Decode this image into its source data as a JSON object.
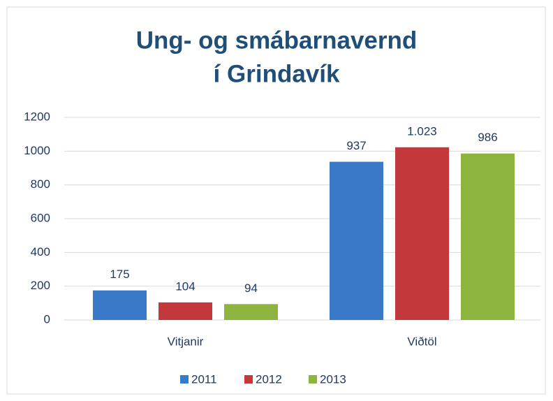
{
  "chart_data": {
    "type": "bar",
    "title": [
      "Ung- og smábarnavernd",
      "í Grindavík"
    ],
    "categories": [
      "Vitjanir",
      "Viðtöl"
    ],
    "series": [
      {
        "name": "2011",
        "color": "#3a78c8",
        "values": [
          175,
          937
        ]
      },
      {
        "name": "2012",
        "color": "#c3393b",
        "values": [
          104,
          1023
        ],
        "value_labels": [
          "104",
          "1.023"
        ]
      },
      {
        "name": "2013",
        "color": "#8db43f",
        "values": [
          94,
          986
        ]
      }
    ],
    "ylim": [
      0,
      1200
    ],
    "yticks": [
      0,
      200,
      400,
      600,
      800,
      1000,
      1200
    ],
    "grid": true,
    "legend": "bottom"
  }
}
